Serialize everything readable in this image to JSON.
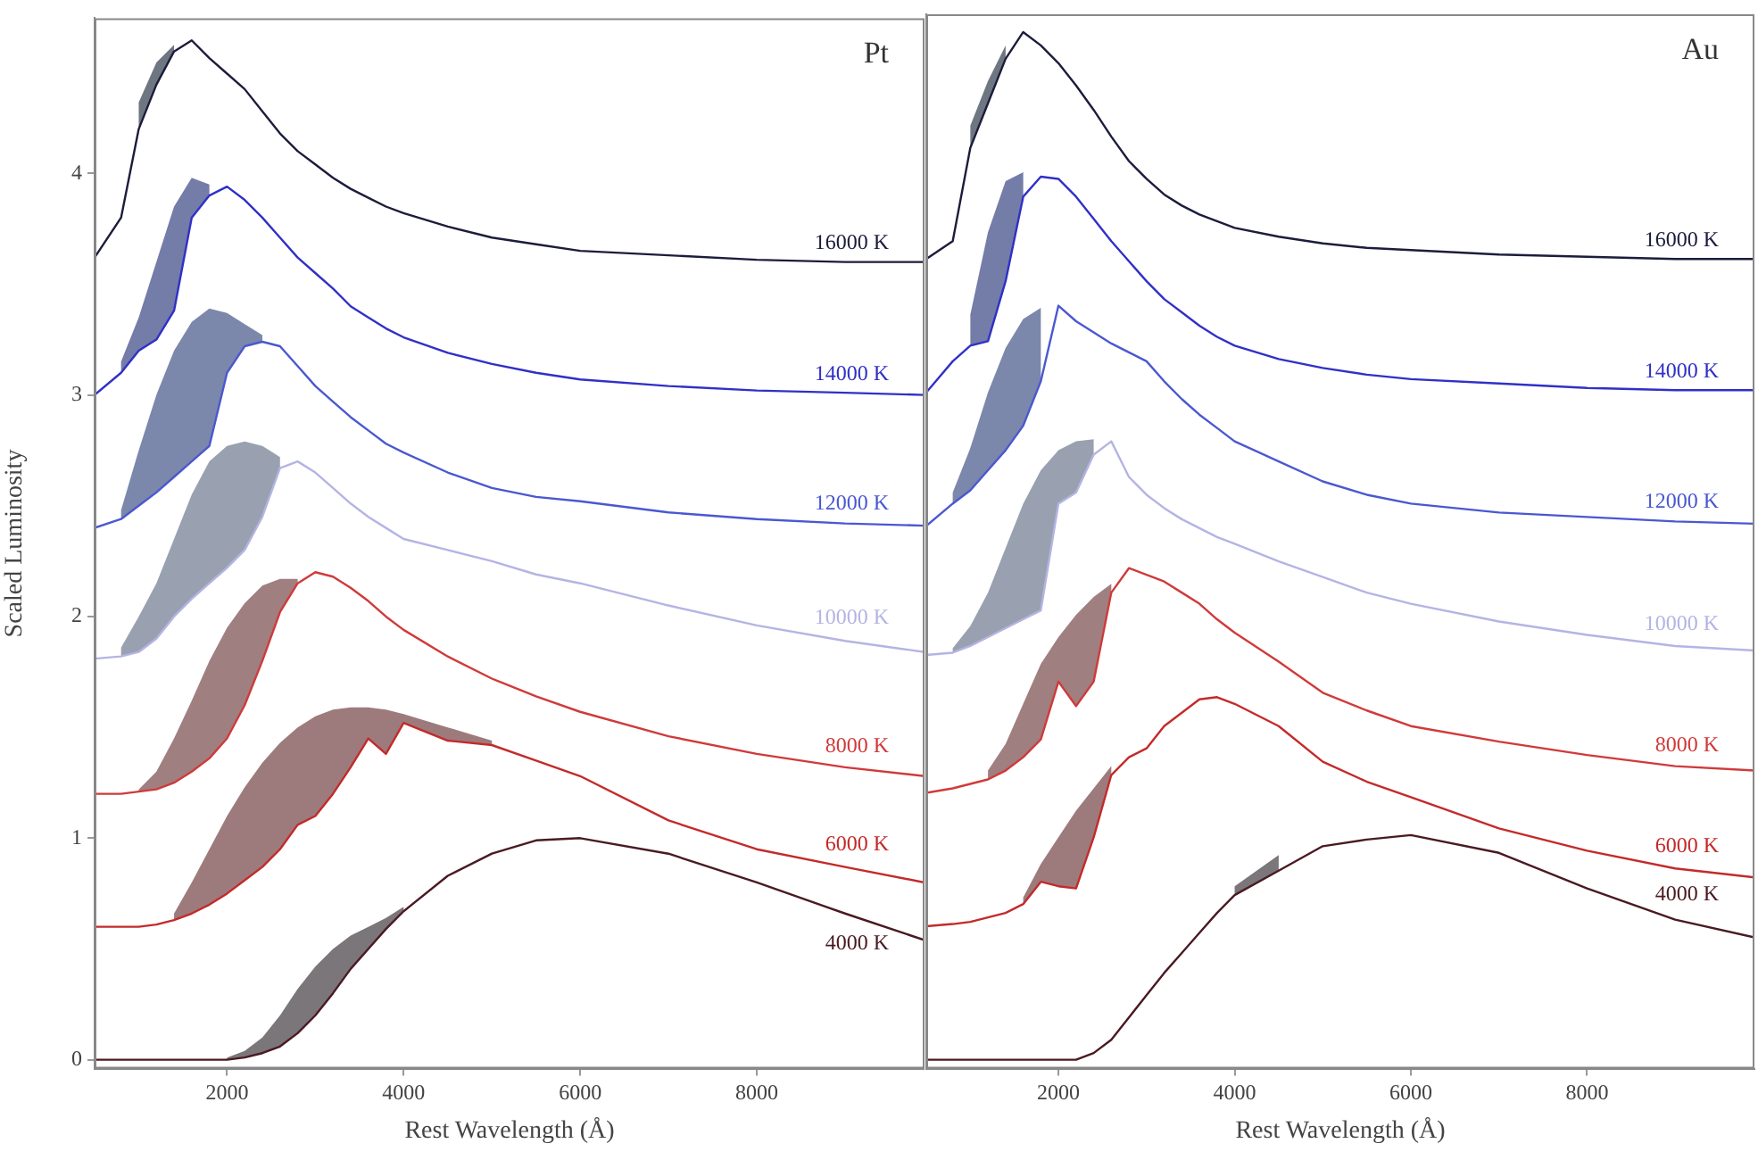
{
  "chart_data": [
    {
      "type": "line",
      "title": "Pt",
      "xlabel": "Rest Wavelength (Å)",
      "ylabel": "Scaled Luminosity",
      "x": [
        500,
        800,
        1000,
        1200,
        1400,
        1600,
        1800,
        2000,
        2200,
        2400,
        2600,
        2800,
        3000,
        3200,
        3400,
        3600,
        3800,
        4000,
        4500,
        5000,
        5500,
        6000,
        7000,
        8000,
        9000,
        9900
      ],
      "xlim": [
        500,
        9900
      ],
      "ylim": [
        -0.04,
        4.7
      ],
      "xticks": [
        2000,
        4000,
        6000,
        8000
      ],
      "yticks": [
        0,
        1,
        2,
        3,
        4
      ],
      "grid": false,
      "legend": false,
      "series": [
        {
          "name": "16000 K",
          "color": "#1c1c3c",
          "values": [
            3.62,
            3.8,
            4.2,
            4.4,
            4.55,
            4.6,
            4.52,
            4.45,
            4.38,
            4.28,
            4.18,
            4.1,
            4.04,
            3.98,
            3.93,
            3.89,
            3.85,
            3.82,
            3.76,
            3.71,
            3.68,
            3.65,
            3.63,
            3.61,
            3.6,
            3.6
          ],
          "lower": [
            null,
            null,
            4.2,
            4.4,
            4.55,
            null,
            null,
            null,
            null,
            null,
            null,
            null,
            null,
            null,
            null,
            null,
            null,
            null,
            null,
            null,
            null,
            null,
            null,
            null,
            null,
            null
          ],
          "upper": [
            null,
            null,
            4.32,
            4.5,
            4.58,
            null,
            null,
            null,
            null,
            null,
            null,
            null,
            null,
            null,
            null,
            null,
            null,
            null,
            null,
            null,
            null,
            null,
            null,
            null,
            null,
            null
          ]
        },
        {
          "name": "14000 K",
          "color": "#3030c8",
          "values": [
            3.0,
            3.1,
            3.2,
            3.25,
            3.38,
            3.8,
            3.9,
            3.94,
            3.88,
            3.8,
            3.71,
            3.62,
            3.55,
            3.48,
            3.4,
            3.35,
            3.3,
            3.26,
            3.19,
            3.14,
            3.1,
            3.07,
            3.04,
            3.02,
            3.01,
            3.0
          ],
          "lower": [
            null,
            3.1,
            3.2,
            3.25,
            3.38,
            3.8,
            3.9,
            null,
            null,
            null,
            null,
            null,
            null,
            null,
            null,
            null,
            null,
            null,
            null,
            null,
            null,
            null,
            null,
            null,
            null,
            null
          ],
          "upper": [
            null,
            3.15,
            3.35,
            3.6,
            3.85,
            3.98,
            3.95,
            null,
            null,
            null,
            null,
            null,
            null,
            null,
            null,
            null,
            null,
            null,
            null,
            null,
            null,
            null,
            null,
            null,
            null,
            null
          ]
        },
        {
          "name": "12000 K",
          "color": "#4a58d0",
          "values": [
            2.4,
            2.44,
            2.5,
            2.56,
            2.63,
            2.7,
            2.77,
            3.1,
            3.22,
            3.24,
            3.22,
            3.13,
            3.04,
            2.97,
            2.9,
            2.84,
            2.78,
            2.74,
            2.65,
            2.58,
            2.54,
            2.52,
            2.47,
            2.44,
            2.42,
            2.41
          ],
          "lower": [
            null,
            2.44,
            2.5,
            2.56,
            2.63,
            2.7,
            2.77,
            3.1,
            3.22,
            3.24,
            null,
            null,
            null,
            null,
            null,
            null,
            null,
            null,
            null,
            null,
            null,
            null,
            null,
            null,
            null,
            null
          ],
          "upper": [
            null,
            2.48,
            2.75,
            3.0,
            3.2,
            3.33,
            3.39,
            3.37,
            3.32,
            3.27,
            null,
            null,
            null,
            null,
            null,
            null,
            null,
            null,
            null,
            null,
            null,
            null,
            null,
            null,
            null,
            null
          ]
        },
        {
          "name": "10000 K",
          "color": "#b4b4e4",
          "values": [
            1.81,
            1.82,
            1.84,
            1.9,
            2.0,
            2.08,
            2.15,
            2.22,
            2.3,
            2.45,
            2.67,
            2.7,
            2.65,
            2.58,
            2.51,
            2.45,
            2.4,
            2.35,
            2.3,
            2.25,
            2.19,
            2.15,
            2.05,
            1.96,
            1.89,
            1.84
          ],
          "lower": [
            null,
            1.82,
            1.84,
            1.9,
            2.0,
            2.08,
            2.15,
            2.22,
            2.3,
            2.45,
            2.67,
            null,
            null,
            null,
            null,
            null,
            null,
            null,
            null,
            null,
            null,
            null,
            null,
            null,
            null,
            null
          ],
          "upper": [
            null,
            1.86,
            2.0,
            2.15,
            2.35,
            2.55,
            2.7,
            2.77,
            2.79,
            2.77,
            2.72,
            null,
            null,
            null,
            null,
            null,
            null,
            null,
            null,
            null,
            null,
            null,
            null,
            null,
            null,
            null
          ]
        },
        {
          "name": "8000 K",
          "color": "#d03a3a",
          "values": [
            1.2,
            1.2,
            1.21,
            1.22,
            1.25,
            1.3,
            1.36,
            1.45,
            1.6,
            1.8,
            2.02,
            2.15,
            2.2,
            2.18,
            2.13,
            2.07,
            2.0,
            1.94,
            1.82,
            1.72,
            1.64,
            1.57,
            1.46,
            1.38,
            1.32,
            1.28
          ],
          "lower": [
            null,
            null,
            1.21,
            1.22,
            1.25,
            1.3,
            1.36,
            1.45,
            1.6,
            1.8,
            2.02,
            2.15,
            null,
            null,
            null,
            null,
            null,
            null,
            null,
            null,
            null,
            null,
            null,
            null,
            null,
            null
          ],
          "upper": [
            null,
            null,
            1.22,
            1.3,
            1.45,
            1.62,
            1.8,
            1.95,
            2.06,
            2.14,
            2.17,
            2.17,
            null,
            null,
            null,
            null,
            null,
            null,
            null,
            null,
            null,
            null,
            null,
            null,
            null,
            null
          ]
        },
        {
          "name": "6000 K",
          "color": "#c42a2a",
          "values": [
            0.6,
            0.6,
            0.6,
            0.61,
            0.63,
            0.66,
            0.7,
            0.75,
            0.81,
            0.87,
            0.95,
            1.06,
            1.1,
            1.2,
            1.32,
            1.45,
            1.38,
            1.52,
            1.44,
            1.42,
            1.35,
            1.28,
            1.08,
            0.95,
            0.87,
            0.8
          ],
          "lower": [
            null,
            null,
            null,
            null,
            0.63,
            0.66,
            0.7,
            0.75,
            0.81,
            0.87,
            0.95,
            1.06,
            1.1,
            1.2,
            1.32,
            1.45,
            1.38,
            1.52,
            1.44,
            1.42,
            null,
            null,
            null,
            null,
            null,
            null
          ],
          "upper": [
            null,
            null,
            null,
            null,
            0.66,
            0.8,
            0.95,
            1.1,
            1.23,
            1.34,
            1.43,
            1.5,
            1.55,
            1.58,
            1.59,
            1.59,
            1.58,
            1.56,
            1.5,
            1.44,
            null,
            null,
            null,
            null,
            null,
            null
          ]
        },
        {
          "name": "4000 K",
          "color": "#4a1a22",
          "values": [
            0,
            0,
            0,
            0,
            0,
            0,
            0,
            0,
            0.01,
            0.03,
            0.06,
            0.12,
            0.2,
            0.3,
            0.41,
            0.5,
            0.59,
            0.67,
            0.83,
            0.93,
            0.99,
            1.0,
            0.93,
            0.8,
            0.66,
            0.54
          ],
          "lower": [
            null,
            null,
            null,
            null,
            null,
            null,
            null,
            0,
            0.01,
            0.03,
            0.06,
            0.12,
            0.2,
            0.3,
            0.41,
            0.5,
            0.59,
            0.67,
            null,
            null,
            null,
            null,
            null,
            null,
            null,
            null
          ],
          "upper": [
            null,
            null,
            null,
            null,
            null,
            null,
            null,
            0.01,
            0.04,
            0.1,
            0.2,
            0.32,
            0.42,
            0.5,
            0.56,
            0.6,
            0.64,
            0.69,
            null,
            null,
            null,
            null,
            null,
            null,
            null,
            null
          ]
        }
      ]
    },
    {
      "type": "line",
      "title": "Au",
      "xlabel": "Rest Wavelength (Å)",
      "tick_labels": "x",
      "x": [
        500,
        800,
        1000,
        1200,
        1400,
        1600,
        1800,
        2000,
        2200,
        2400,
        2600,
        2800,
        3000,
        3200,
        3400,
        3600,
        3800,
        4000,
        4500,
        5000,
        5500,
        6000,
        7000,
        8000,
        9000,
        9900
      ],
      "xlim": [
        500,
        9900
      ],
      "ylim": [
        -0.04,
        4.7
      ],
      "xticks": [
        2000,
        4000,
        6000,
        8000
      ],
      "yticks": [
        0,
        1,
        2,
        3,
        4
      ],
      "grid": false,
      "legend": false,
      "series": [
        {
          "name": "16000 K",
          "color": "#1c1c3c",
          "values": [
            3.6,
            3.68,
            4.1,
            4.3,
            4.5,
            4.62,
            4.56,
            4.48,
            4.38,
            4.27,
            4.15,
            4.04,
            3.96,
            3.89,
            3.84,
            3.8,
            3.77,
            3.74,
            3.7,
            3.67,
            3.65,
            3.64,
            3.62,
            3.61,
            3.6,
            3.6
          ],
          "lower": [
            null,
            null,
            4.1,
            4.3,
            4.5,
            null,
            null,
            null,
            null,
            null,
            null,
            null,
            null,
            null,
            null,
            null,
            null,
            null,
            null,
            null,
            null,
            null,
            null,
            null,
            null,
            null
          ],
          "upper": [
            null,
            null,
            4.2,
            4.4,
            4.56,
            null,
            null,
            null,
            null,
            null,
            null,
            null,
            null,
            null,
            null,
            null,
            null,
            null,
            null,
            null,
            null,
            null,
            null,
            null,
            null,
            null
          ]
        },
        {
          "name": "14000 K",
          "color": "#3030c8",
          "values": [
            3.0,
            3.14,
            3.21,
            3.23,
            3.5,
            3.88,
            3.97,
            3.96,
            3.88,
            3.78,
            3.68,
            3.59,
            3.5,
            3.42,
            3.36,
            3.3,
            3.25,
            3.21,
            3.15,
            3.11,
            3.08,
            3.06,
            3.04,
            3.02,
            3.01,
            3.01
          ],
          "lower": [
            null,
            null,
            3.21,
            3.23,
            3.5,
            3.88,
            null,
            null,
            null,
            null,
            null,
            null,
            null,
            null,
            null,
            null,
            null,
            null,
            null,
            null,
            null,
            null,
            null,
            null,
            null,
            null
          ],
          "upper": [
            null,
            null,
            3.35,
            3.72,
            3.95,
            3.99,
            null,
            null,
            null,
            null,
            null,
            null,
            null,
            null,
            null,
            null,
            null,
            null,
            null,
            null,
            null,
            null,
            null,
            null,
            null,
            null
          ]
        },
        {
          "name": "12000 K",
          "color": "#4a58d0",
          "values": [
            2.4,
            2.5,
            2.56,
            2.65,
            2.74,
            2.85,
            3.05,
            3.39,
            3.32,
            3.27,
            3.22,
            3.18,
            3.14,
            3.05,
            2.97,
            2.9,
            2.84,
            2.78,
            2.69,
            2.6,
            2.54,
            2.5,
            2.46,
            2.44,
            2.42,
            2.41
          ],
          "lower": [
            null,
            2.5,
            2.56,
            2.65,
            2.74,
            2.85,
            3.05,
            null,
            null,
            null,
            null,
            null,
            null,
            null,
            null,
            null,
            null,
            null,
            null,
            null,
            null,
            null,
            null,
            null,
            null,
            null
          ],
          "upper": [
            null,
            2.55,
            2.75,
            3.0,
            3.2,
            3.33,
            3.38,
            null,
            null,
            null,
            null,
            null,
            null,
            null,
            null,
            null,
            null,
            null,
            null,
            null,
            null,
            null,
            null,
            null,
            null,
            null
          ]
        },
        {
          "name": "10000 K",
          "color": "#b4b4e4",
          "values": [
            1.82,
            1.83,
            1.86,
            1.9,
            1.94,
            1.98,
            2.02,
            2.5,
            2.55,
            2.72,
            2.78,
            2.62,
            2.54,
            2.48,
            2.43,
            2.39,
            2.35,
            2.32,
            2.24,
            2.17,
            2.1,
            2.05,
            1.97,
            1.91,
            1.86,
            1.84
          ],
          "lower": [
            null,
            1.83,
            1.86,
            1.9,
            1.94,
            1.98,
            2.02,
            2.5,
            2.55,
            2.72,
            null,
            null,
            null,
            null,
            null,
            null,
            null,
            null,
            null,
            null,
            null,
            null,
            null,
            null,
            null,
            null
          ],
          "upper": [
            null,
            1.85,
            1.95,
            2.1,
            2.3,
            2.5,
            2.65,
            2.74,
            2.78,
            2.79,
            null,
            null,
            null,
            null,
            null,
            null,
            null,
            null,
            null,
            null,
            null,
            null,
            null,
            null,
            null,
            null
          ]
        },
        {
          "name": "8000 K",
          "color": "#d03a3a",
          "values": [
            1.2,
            1.22,
            1.24,
            1.26,
            1.3,
            1.36,
            1.44,
            1.7,
            1.59,
            1.7,
            2.1,
            2.21,
            2.18,
            2.15,
            2.1,
            2.05,
            1.98,
            1.92,
            1.79,
            1.65,
            1.57,
            1.5,
            1.43,
            1.37,
            1.32,
            1.3
          ],
          "lower": [
            null,
            null,
            null,
            1.26,
            1.3,
            1.36,
            1.44,
            1.7,
            1.59,
            1.7,
            2.1,
            null,
            null,
            null,
            null,
            null,
            null,
            null,
            null,
            null,
            null,
            null,
            null,
            null,
            null,
            null
          ],
          "upper": [
            null,
            null,
            null,
            1.3,
            1.42,
            1.6,
            1.78,
            1.9,
            2.0,
            2.08,
            2.14,
            null,
            null,
            null,
            null,
            null,
            null,
            null,
            null,
            null,
            null,
            null,
            null,
            null,
            null,
            null
          ]
        },
        {
          "name": "6000 K",
          "color": "#c42a2a",
          "values": [
            0.6,
            0.61,
            0.62,
            0.64,
            0.66,
            0.7,
            0.8,
            0.78,
            0.77,
            1.0,
            1.28,
            1.36,
            1.4,
            1.5,
            1.56,
            1.62,
            1.63,
            1.6,
            1.5,
            1.34,
            1.25,
            1.18,
            1.04,
            0.94,
            0.86,
            0.82
          ],
          "lower": [
            null,
            null,
            null,
            null,
            null,
            0.7,
            0.8,
            0.78,
            0.77,
            1.0,
            1.28,
            null,
            null,
            null,
            null,
            null,
            null,
            null,
            null,
            null,
            null,
            null,
            null,
            null,
            null,
            null
          ],
          "upper": [
            null,
            null,
            null,
            null,
            null,
            0.73,
            0.88,
            1.0,
            1.12,
            1.22,
            1.32,
            null,
            null,
            null,
            null,
            null,
            null,
            null,
            null,
            null,
            null,
            null,
            null,
            null,
            null,
            null
          ]
        },
        {
          "name": "4000 K",
          "color": "#4a1a22",
          "values": [
            0,
            0,
            0,
            0,
            0,
            0,
            0,
            0,
            0,
            0.03,
            0.09,
            0.19,
            0.29,
            0.39,
            0.48,
            0.57,
            0.66,
            0.74,
            0.85,
            0.96,
            0.99,
            1.01,
            0.93,
            0.77,
            0.63,
            0.55
          ],
          "lower": [
            null,
            null,
            null,
            null,
            null,
            null,
            null,
            null,
            null,
            null,
            null,
            null,
            null,
            null,
            null,
            null,
            null,
            0.74,
            0.85,
            null,
            null,
            null,
            null,
            null,
            null,
            null
          ],
          "upper": [
            null,
            null,
            null,
            null,
            null,
            null,
            null,
            null,
            null,
            null,
            null,
            null,
            null,
            null,
            null,
            null,
            null,
            0.78,
            0.92,
            null,
            null,
            null,
            null,
            null,
            null,
            null
          ]
        }
      ]
    }
  ]
}
